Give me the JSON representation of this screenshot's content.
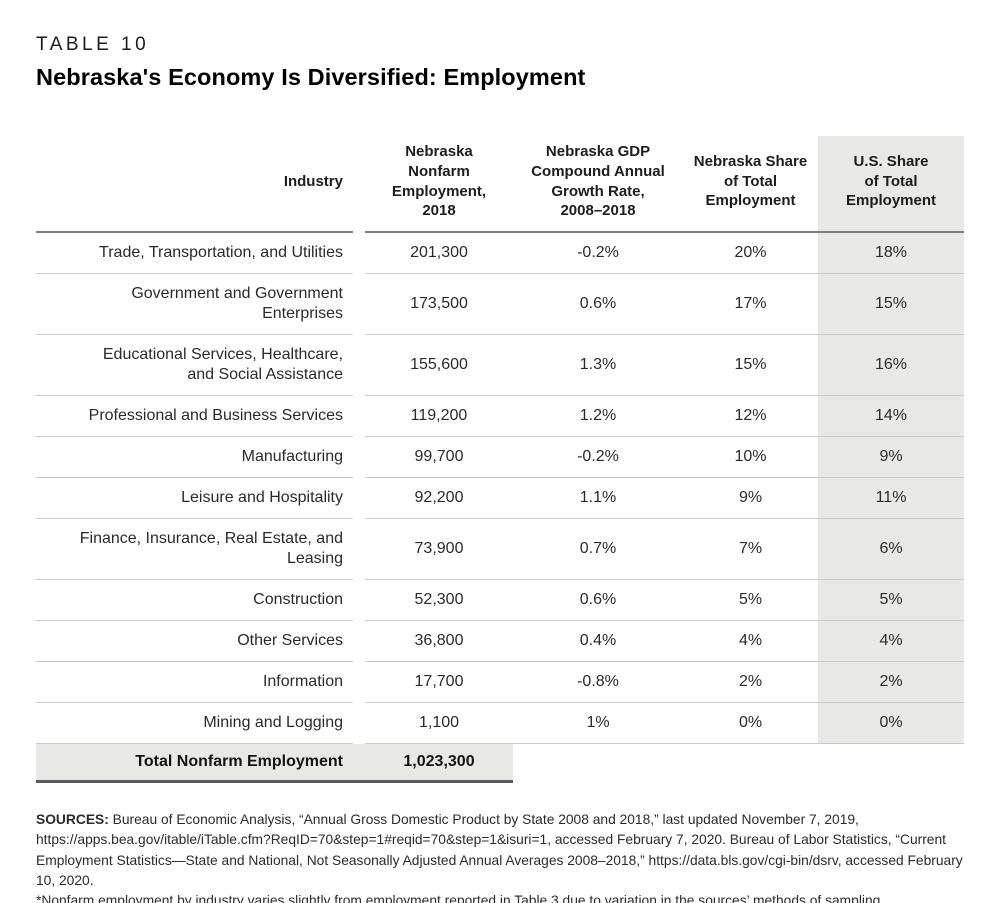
{
  "page": {
    "kicker": "TABLE 10",
    "title": "Nebraska's Economy Is Diversified: Employment"
  },
  "table": {
    "columns": [
      {
        "label": "Industry"
      },
      {
        "label": "Nebraska Nonfarm Employment, 2018",
        "lines": [
          "Nebraska",
          "Nonfarm",
          "Employment, 2018"
        ]
      },
      {
        "label": "Nebraska GDP Compound Annual Growth Rate, 2008–2018",
        "lines": [
          "Nebraska GDP",
          "Compound Annual",
          "Growth Rate,",
          "2008–2018"
        ]
      },
      {
        "label": "Nebraska Share of Total Employment",
        "lines": [
          "Nebraska Share",
          "of Total",
          "Employment"
        ]
      },
      {
        "label": "U.S. Share of Total Employment",
        "lines": [
          "U.S. Share",
          "of Total",
          "Employment"
        ]
      }
    ],
    "rows": [
      {
        "industry": "Trade, Transportation, and Utilities",
        "employment": "201,300",
        "growth": "-0.2%",
        "ne_share": "20%",
        "us_share": "18%"
      },
      {
        "industry": "Government and Government Enterprises",
        "employment": "173,500",
        "growth": "0.6%",
        "ne_share": "17%",
        "us_share": "15%"
      },
      {
        "industry": "Educational Services, Healthcare, and Social Assistance",
        "employment": "155,600",
        "growth": "1.3%",
        "ne_share": "15%",
        "us_share": "16%"
      },
      {
        "industry": "Professional and Business Services",
        "employment": "119,200",
        "growth": "1.2%",
        "ne_share": "12%",
        "us_share": "14%"
      },
      {
        "industry": "Manufacturing",
        "employment": "99,700",
        "growth": "-0.2%",
        "ne_share": "10%",
        "us_share": "9%"
      },
      {
        "industry": "Leisure and Hospitality",
        "employment": "92,200",
        "growth": "1.1%",
        "ne_share": "9%",
        "us_share": "11%"
      },
      {
        "industry": "Finance, Insurance, Real Estate, and Leasing",
        "employment": "73,900",
        "growth": "0.7%",
        "ne_share": "7%",
        "us_share": "6%"
      },
      {
        "industry": "Construction",
        "employment": "52,300",
        "growth": "0.6%",
        "ne_share": "5%",
        "us_share": "5%"
      },
      {
        "industry": "Other Services",
        "employment": "36,800",
        "growth": "0.4%",
        "ne_share": "4%",
        "us_share": "4%"
      },
      {
        "industry": "Information",
        "employment": "17,700",
        "growth": "-0.8%",
        "ne_share": "2%",
        "us_share": "2%"
      },
      {
        "industry": "Mining and Logging",
        "employment": "1,100",
        "growth": "1%",
        "ne_share": "0%",
        "us_share": "0%"
      }
    ],
    "total": {
      "label": "Total Nonfarm Employment",
      "value": "1,023,300"
    }
  },
  "footnotes": {
    "sources_label": "SOURCES:",
    "sources_text": " Bureau of Economic Analysis, “Annual Gross Domestic Product by State 2008 and 2018,” last updated November 7, 2019, https://apps.bea.gov/itable/iTable.cfm?ReqID=70&step=1#reqid=70&step=1&isuri=1, accessed February 7, 2020. Bureau of Labor Statistics, “Current Employment Statistics—State and National, Not Seasonally Adjusted Annual Averages 2008–2018,” https://data.bls.gov/cgi-bin/dsrv, accessed February 10, 2020.",
    "note_text": "*Nonfarm employment by industry varies slightly from employment reported in Table 3 due to variation in the sources’ methods of sampling."
  },
  "colors": {
    "shade_bg": "#e8e8e7",
    "rule_light": "#c9cacc",
    "rule_header": "#7d7e80",
    "rule_total": "#58595b",
    "text": "#231f20"
  }
}
